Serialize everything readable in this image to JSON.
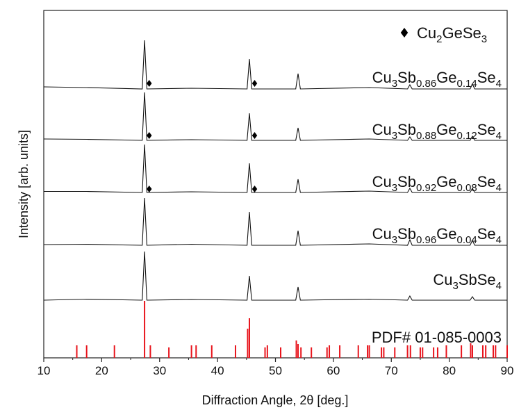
{
  "chart_data": {
    "type": "line",
    "xlabel": "Diffraction Angle, 2θ [deg.]",
    "ylabel": "Intensity [arb. units]",
    "xlim": [
      10,
      90
    ],
    "xticks": [
      10,
      20,
      30,
      40,
      50,
      60,
      70,
      80,
      90
    ],
    "ylim": [
      0,
      100
    ],
    "x": [
      10,
      17.4,
      27.0,
      27.4,
      27.8,
      35.5,
      45.1,
      45.5,
      45.9,
      53.5,
      53.9,
      54.3,
      66.2,
      72.8,
      73.2,
      73.6,
      83.6,
      84.0,
      84.4,
      90
    ],
    "series": [
      {
        "name": "Cu3Sb0.86Ge0.14Se4",
        "color": "#111111",
        "values": [
          78,
          77.8,
          77.4,
          91.4,
          77.4,
          77.6,
          77.4,
          86,
          77.4,
          77.4,
          81.8,
          77.4,
          77.8,
          77.4,
          78.6,
          77.4,
          77.4,
          78.8,
          77.4,
          77.4
        ]
      },
      {
        "name": "Cu3Sb0.88Ge0.12Se4",
        "color": "#111111",
        "values": [
          63,
          62.9,
          62.6,
          76.4,
          62.6,
          62.8,
          62.6,
          70.4,
          62.6,
          62.6,
          66.2,
          62.6,
          63,
          62.6,
          63.6,
          62.6,
          62.6,
          63.8,
          62.6,
          62.6
        ]
      },
      {
        "name": "Cu3Sb0.92Ge0.08Se4",
        "color": "#111111",
        "values": [
          47.9,
          47.9,
          47.6,
          61.4,
          47.6,
          47.8,
          47.6,
          56,
          47.6,
          47.6,
          51.4,
          47.6,
          48,
          47.6,
          48.8,
          47.6,
          47.6,
          48.8,
          47.6,
          47.6
        ]
      },
      {
        "name": "Cu3Sb0.96Ge0.04Se4",
        "color": "#111111",
        "values": [
          32.6,
          32.7,
          32.4,
          46,
          32.4,
          32.7,
          32.4,
          42,
          32.4,
          32.4,
          36.6,
          32.4,
          32.8,
          32.4,
          34,
          32.4,
          32.4,
          33.8,
          32.4,
          32.4
        ]
      },
      {
        "name": "Cu3SbSe4",
        "color": "#111111",
        "values": [
          16.6,
          16.9,
          16.6,
          30.6,
          16.6,
          16.8,
          16.6,
          23.6,
          16.6,
          16.6,
          20.4,
          16.6,
          16.9,
          16.6,
          17.8,
          16.6,
          16.6,
          17.6,
          16.6,
          16.6
        ]
      }
    ],
    "markers": {
      "name": "Cu2GeSe3",
      "color": "#000000",
      "x": [
        28.2,
        46.4,
        28.2,
        46.4,
        28.2,
        46.4
      ],
      "values": [
        79,
        79,
        64,
        64,
        48.6,
        48.6
      ]
    },
    "sticks": {
      "name": "PDF# 01-085-0003",
      "color": "#e8141c",
      "x": [
        15.7,
        17.4,
        22.2,
        27.4,
        28.4,
        31.6,
        35.5,
        36.3,
        39.0,
        43.1,
        45.2,
        45.5,
        48.2,
        48.6,
        50.9,
        53.6,
        53.9,
        54.4,
        56.2,
        58.9,
        59.3,
        61.1,
        64.3,
        65.9,
        66.2,
        68.3,
        68.7,
        70.6,
        72.8,
        73.3,
        75.0,
        75.4,
        77.3,
        78.0,
        79.5,
        82.1,
        83.7,
        84.0,
        85.8,
        86.3,
        87.6,
        88.0,
        90.0
      ],
      "values": [
        3.6,
        3.6,
        3.6,
        16.4,
        3.6,
        3,
        3.6,
        3.6,
        3.6,
        3.6,
        8.4,
        11.4,
        3,
        3.6,
        3,
        5,
        4,
        3,
        3,
        3,
        3.6,
        3.6,
        3.6,
        3.6,
        3.6,
        3,
        3,
        3,
        3.6,
        3.6,
        3,
        3,
        3,
        3,
        3.6,
        3.6,
        4.2,
        3.6,
        3.6,
        3.6,
        3.6,
        3.6,
        3.6
      ]
    }
  }
}
